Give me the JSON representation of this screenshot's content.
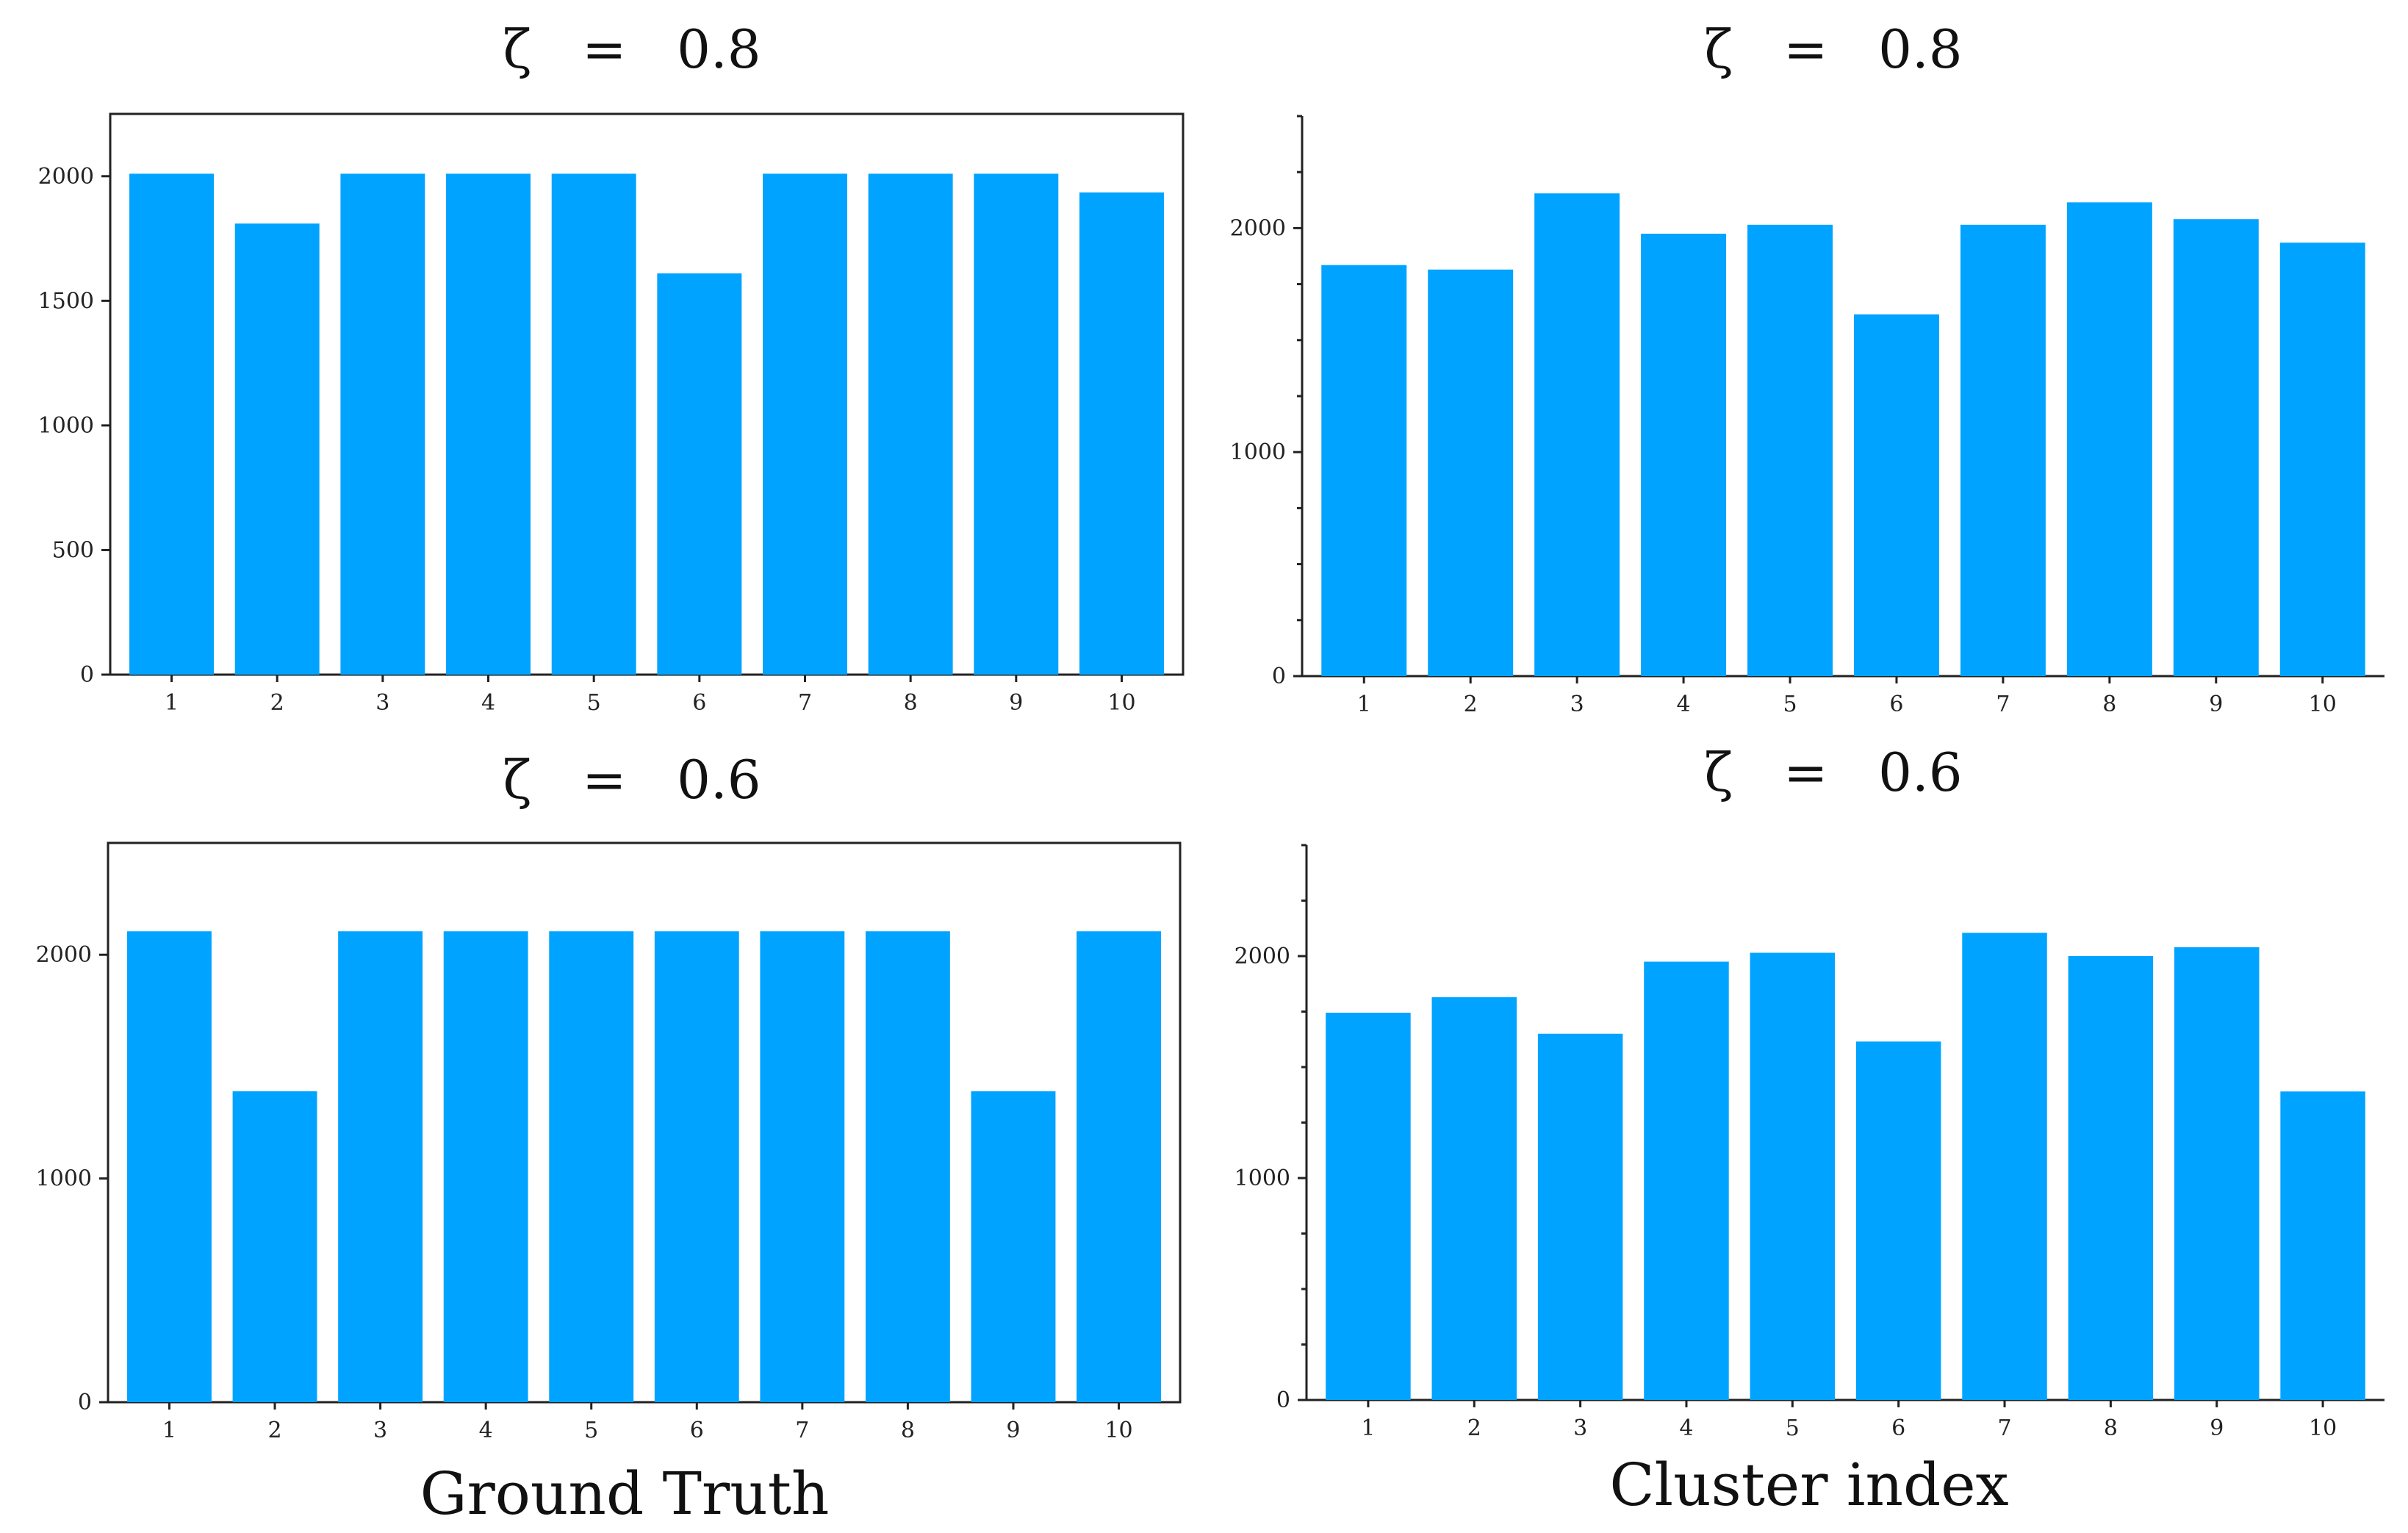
{
  "captions": {
    "left": "Ground Truth",
    "right": "Cluster index"
  },
  "colors": {
    "bar": "#00a3ff",
    "axis": "#222222"
  },
  "chart_data": [
    {
      "type": "bar",
      "title": "ζ   =   0.8",
      "categories": [
        "1",
        "2",
        "3",
        "4",
        "5",
        "6",
        "7",
        "8",
        "9",
        "10"
      ],
      "values": [
        2010,
        1810,
        2010,
        2010,
        2010,
        1610,
        2010,
        2010,
        2010,
        1935
      ],
      "ylim": [
        0,
        2250
      ],
      "yticks": [
        0,
        500,
        1000,
        1500,
        2000
      ],
      "ytick_labels": [
        "0",
        "500",
        "1000",
        "1500",
        "2000"
      ],
      "box": true
    },
    {
      "type": "bar",
      "title": "ζ   =   0.8",
      "categories": [
        "1",
        "2",
        "3",
        "4",
        "5",
        "6",
        "7",
        "8",
        "9",
        "10"
      ],
      "values": [
        1835,
        1815,
        2155,
        1975,
        2015,
        1615,
        2015,
        2115,
        2040,
        1935
      ],
      "ylim": [
        0,
        2500
      ],
      "yticks": [
        0,
        1000,
        2000
      ],
      "ytick_labels": [
        "0",
        "1000",
        "2000"
      ],
      "minor_yticks": [
        250,
        500,
        750,
        1250,
        1500,
        1750,
        2250,
        2500
      ],
      "box": false
    },
    {
      "type": "bar",
      "title": "ζ   =   0.6",
      "categories": [
        "1",
        "2",
        "3",
        "4",
        "5",
        "6",
        "7",
        "8",
        "9",
        "10"
      ],
      "values": [
        2105,
        1390,
        2105,
        2105,
        2105,
        2105,
        2105,
        2105,
        1390,
        2105
      ],
      "ylim": [
        0,
        2500
      ],
      "yticks": [
        0,
        1000,
        2000
      ],
      "ytick_labels": [
        "0",
        "1000",
        "2000"
      ],
      "box": true
    },
    {
      "type": "bar",
      "title": "ζ   =   0.6",
      "categories": [
        "1",
        "2",
        "3",
        "4",
        "5",
        "6",
        "7",
        "8",
        "9",
        "10"
      ],
      "values": [
        1745,
        1815,
        1650,
        1975,
        2015,
        1615,
        2105,
        2000,
        2040,
        1390
      ],
      "ylim": [
        0,
        2500
      ],
      "yticks": [
        0,
        1000,
        2000
      ],
      "ytick_labels": [
        "0",
        "1000",
        "2000"
      ],
      "minor_yticks": [
        250,
        500,
        750,
        1250,
        1500,
        1750,
        2250,
        2500
      ],
      "box": false
    }
  ]
}
